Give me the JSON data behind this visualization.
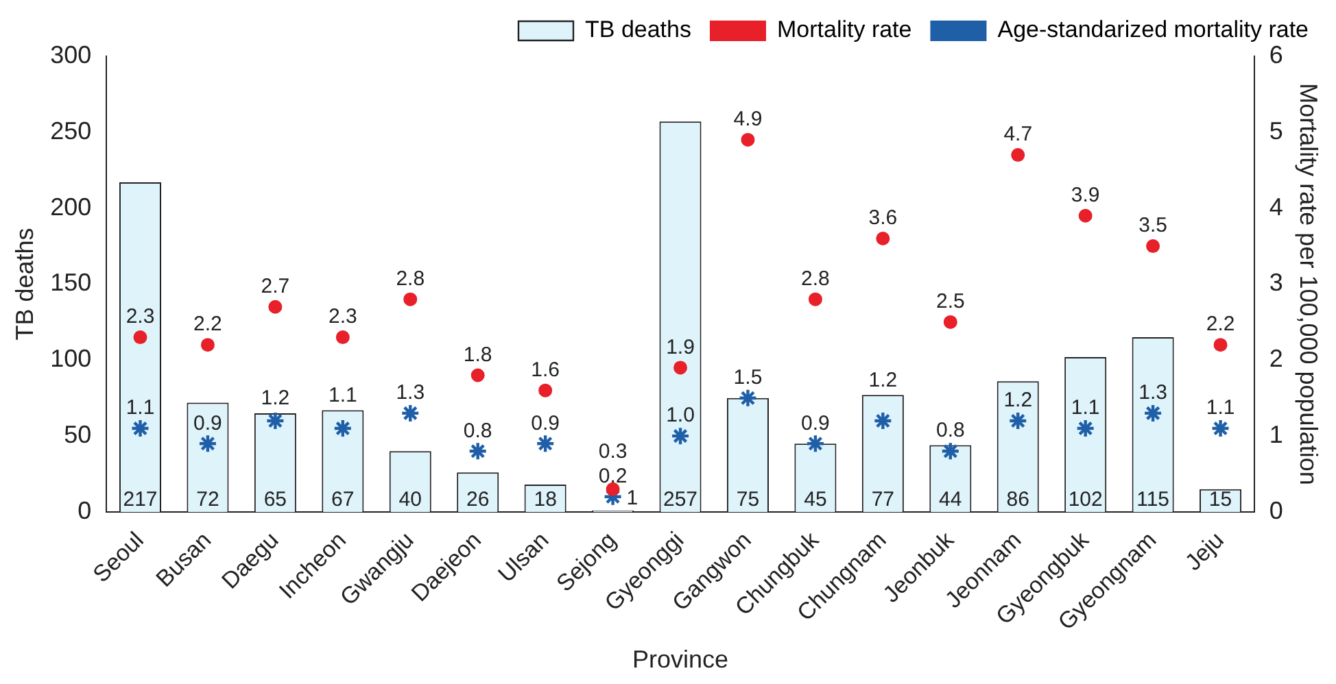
{
  "chart_data": {
    "type": "bar",
    "xlabel": "Province",
    "ylabel": "TB deaths",
    "y2label": "Mortality rate per 100,000 population",
    "categories": [
      "Seoul",
      "Busan",
      "Daegu",
      "Incheon",
      "Gwangju",
      "Daejeon",
      "Ulsan",
      "Sejong",
      "Gyeonggi",
      "Gangwon",
      "Chungbuk",
      "Chungnam",
      "Jeonbuk",
      "Jeonnam",
      "Gyeongbuk",
      "Gyeongnam",
      "Jeju"
    ],
    "series": [
      {
        "name": "TB deaths",
        "color": "#dff3fb",
        "values": [
          217,
          72,
          65,
          67,
          40,
          26,
          18,
          1,
          257,
          75,
          45,
          77,
          44,
          86,
          102,
          115,
          15
        ]
      },
      {
        "name": "Mortality rate",
        "type": "scatter",
        "axis": "y2",
        "marker": "circle",
        "color": "#e8202a",
        "values": [
          2.3,
          2.2,
          2.7,
          2.3,
          2.8,
          1.8,
          1.6,
          0.3,
          1.9,
          4.9,
          2.8,
          3.6,
          2.5,
          4.7,
          3.9,
          3.5,
          2.2
        ]
      },
      {
        "name": "Age-standarized mortality rate",
        "type": "scatter",
        "axis": "y2",
        "marker": "cross",
        "color": "#1f5fa8",
        "values": [
          1.1,
          0.9,
          1.2,
          1.1,
          1.3,
          0.8,
          0.9,
          0.2,
          1.0,
          1.5,
          0.9,
          1.2,
          0.8,
          1.2,
          1.1,
          1.3,
          1.1
        ],
        "value_labels": [
          "1.1",
          "0.9",
          "1.2",
          "1.1",
          "1.3",
          "0.8",
          "0.9",
          "0.2",
          "1.0",
          "1.5",
          "0.9",
          "1.2",
          "0.8",
          "1.2",
          "1.1",
          "1.3",
          "1.1"
        ]
      }
    ],
    "data_labels": true,
    "ylim": [
      0,
      300
    ],
    "yticks": [
      0,
      50,
      100,
      150,
      200,
      250,
      300
    ],
    "y2lim": [
      0,
      6
    ],
    "y2ticks": [
      0,
      1,
      2,
      3,
      4,
      5,
      6
    ],
    "grid": false,
    "legend": "top"
  }
}
